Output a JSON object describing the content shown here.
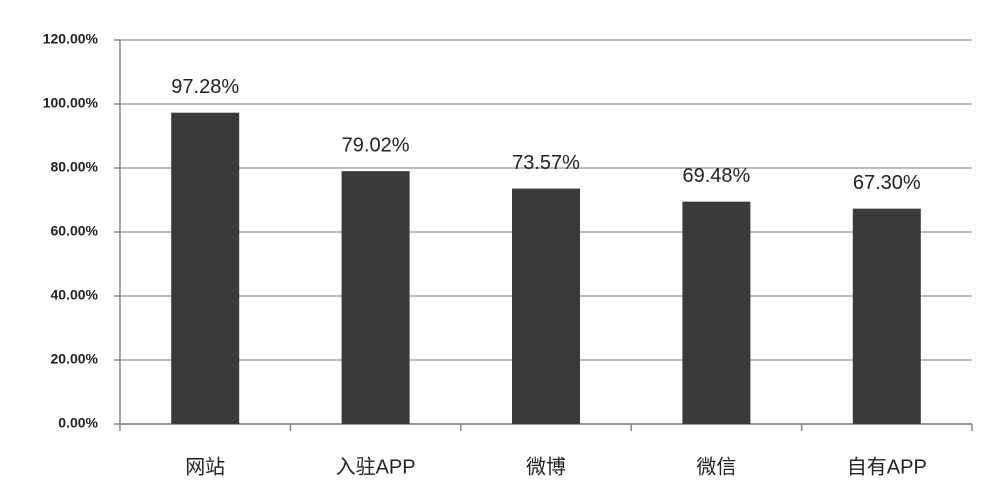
{
  "chart_data": {
    "type": "bar",
    "categories": [
      "网站",
      "入驻APP",
      "微博",
      "微信",
      "自有APP"
    ],
    "values": [
      97.28,
      79.02,
      73.57,
      69.48,
      67.3
    ],
    "value_labels": [
      "97.28%",
      "79.02%",
      "73.57%",
      "69.48%",
      "67.30%"
    ],
    "color": "#3a3a3a",
    "ylim": [
      0,
      120
    ],
    "yticks": [
      {
        "value": 0,
        "label": "0.00%"
      },
      {
        "value": 20,
        "label": "20.00%"
      },
      {
        "value": 40,
        "label": "40.00%"
      },
      {
        "value": 60,
        "label": "60.00%"
      },
      {
        "value": 80,
        "label": "80.00%"
      },
      {
        "value": 100,
        "label": "100.00%"
      },
      {
        "value": 120,
        "label": "120.00%"
      }
    ],
    "grid": true
  }
}
